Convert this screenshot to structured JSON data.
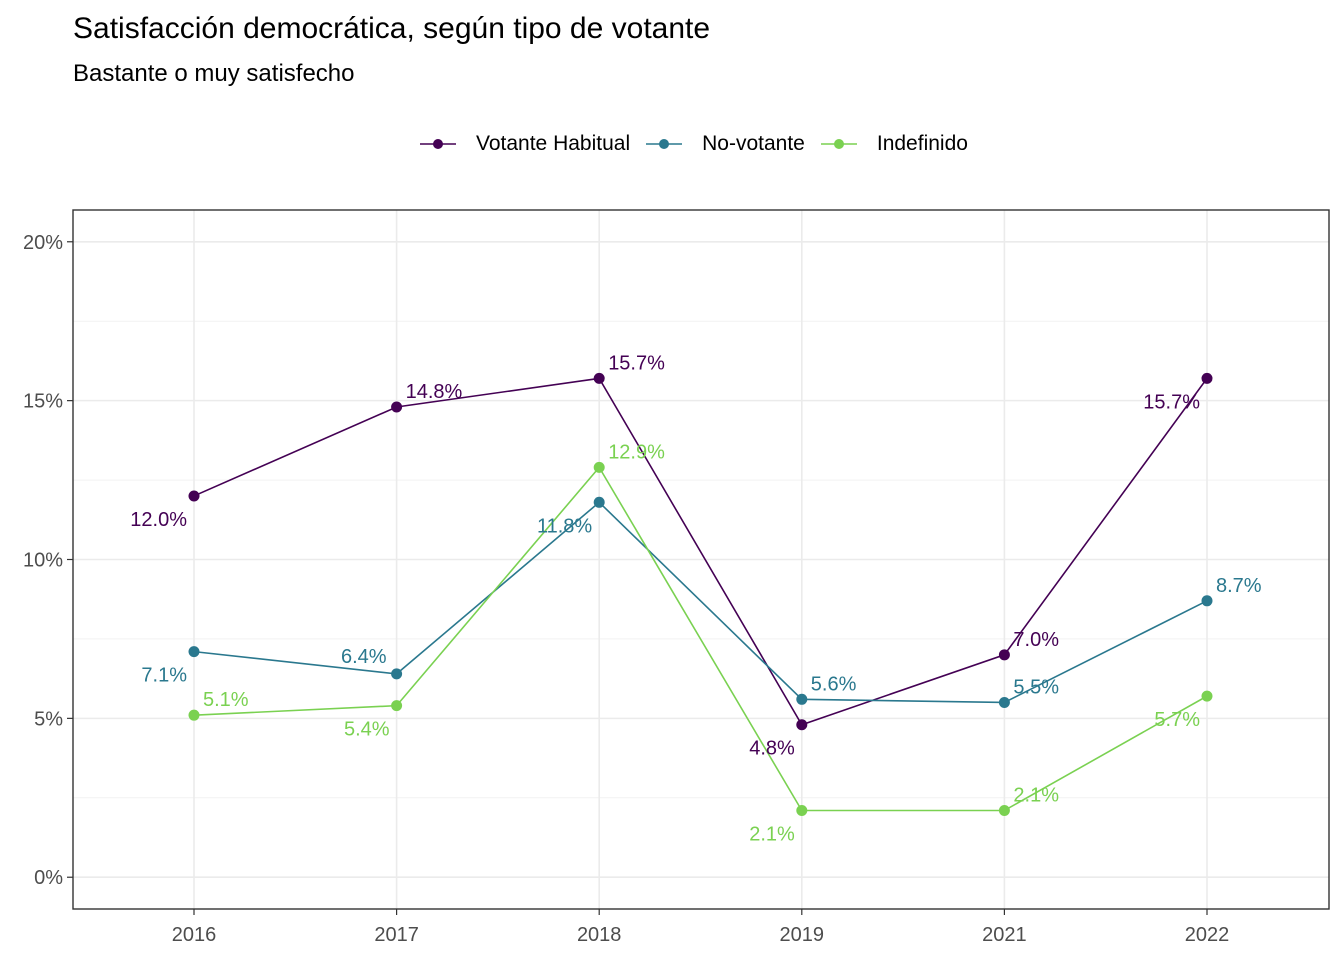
{
  "chart_data": {
    "type": "line",
    "title": "Satisfacción democrática, según tipo de votante",
    "subtitle": "Bastante o muy satisfecho",
    "xlabel": "",
    "ylabel": "",
    "categories": [
      "2016",
      "2017",
      "2018",
      "2019",
      "2021",
      "2022"
    ],
    "ylim": [
      -1,
      21
    ],
    "y_ticks": [
      0,
      5,
      10,
      15,
      20
    ],
    "y_tick_labels": [
      "0%",
      "5%",
      "10%",
      "15%",
      "20%"
    ],
    "grid": true,
    "legend_position": "top",
    "series": [
      {
        "name": "Votante Habitual",
        "color": "#440154",
        "values": [
          12.0,
          14.8,
          15.7,
          4.8,
          7.0,
          15.7
        ],
        "labels": [
          "12.0%",
          "14.8%",
          "15.7%",
          "4.8%",
          "7.0%",
          "15.7%"
        ],
        "label_positions": [
          "below",
          "above",
          "above",
          "below",
          "above",
          "below"
        ]
      },
      {
        "name": "No-votante",
        "color": "#2A788E",
        "values": [
          7.1,
          6.4,
          11.8,
          5.6,
          5.5,
          8.7
        ],
        "labels": [
          "7.1%",
          "6.4%",
          "11.8%",
          "5.6%",
          "5.5%",
          "8.7%"
        ],
        "label_positions": [
          "below",
          "left",
          "below",
          "above",
          "above",
          "above"
        ]
      },
      {
        "name": "Indefinido",
        "color": "#7AD151",
        "values": [
          5.1,
          5.4,
          12.9,
          2.1,
          2.1,
          5.7
        ],
        "labels": [
          "5.1%",
          "5.4%",
          "12.9%",
          "2.1%",
          "2.1%",
          "5.7%"
        ],
        "label_positions": [
          "above",
          "below",
          "above",
          "below",
          "above",
          "below"
        ]
      }
    ]
  }
}
